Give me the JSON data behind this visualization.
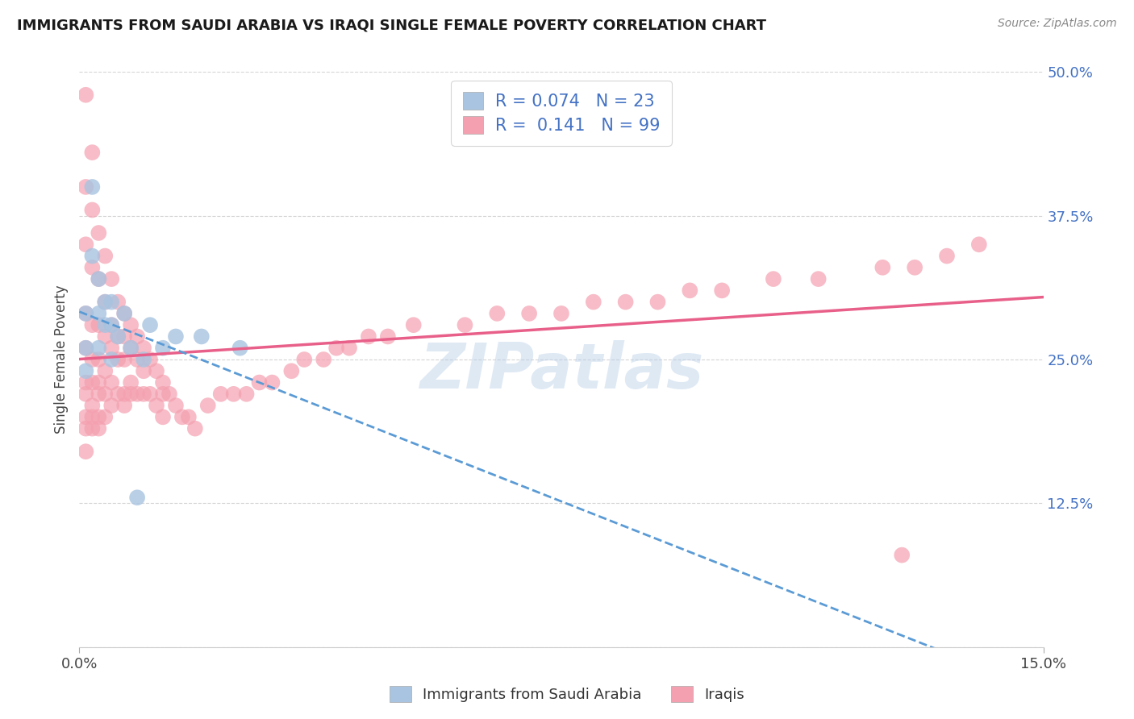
{
  "title": "IMMIGRANTS FROM SAUDI ARABIA VS IRAQI SINGLE FEMALE POVERTY CORRELATION CHART",
  "source": "Source: ZipAtlas.com",
  "ylabel": "Single Female Poverty",
  "xlim": [
    0.0,
    0.15
  ],
  "ylim": [
    0.0,
    0.5
  ],
  "xtick_labels": [
    "0.0%",
    "15.0%"
  ],
  "yticks": [
    0.0,
    0.125,
    0.25,
    0.375,
    0.5
  ],
  "ytick_labels": [
    "",
    "12.5%",
    "25.0%",
    "37.5%",
    "50.0%"
  ],
  "saudi_R": 0.074,
  "saudi_N": 23,
  "iraqi_R": 0.141,
  "iraqi_N": 99,
  "saudi_color": "#a8c4e0",
  "iraqi_color": "#f4a0b0",
  "saudi_line_color": "#5b9bd5",
  "iraqi_line_color": "#e8608a",
  "background_color": "#ffffff",
  "grid_color": "#d0d0d0",
  "watermark": "ZIPatlas",
  "legend_label_saudi": "Immigrants from Saudi Arabia",
  "legend_label_iraqi": "Iraqis",
  "saudi_x": [
    0.001,
    0.001,
    0.001,
    0.002,
    0.002,
    0.003,
    0.003,
    0.003,
    0.004,
    0.004,
    0.005,
    0.005,
    0.005,
    0.006,
    0.007,
    0.008,
    0.009,
    0.01,
    0.011,
    0.013,
    0.015,
    0.019,
    0.025
  ],
  "saudi_y": [
    0.26,
    0.29,
    0.24,
    0.4,
    0.34,
    0.29,
    0.32,
    0.26,
    0.3,
    0.28,
    0.3,
    0.28,
    0.25,
    0.27,
    0.29,
    0.26,
    0.13,
    0.25,
    0.28,
    0.26,
    0.27,
    0.27,
    0.26
  ],
  "iraqi_x": [
    0.001,
    0.001,
    0.001,
    0.001,
    0.001,
    0.001,
    0.001,
    0.001,
    0.001,
    0.001,
    0.002,
    0.002,
    0.002,
    0.002,
    0.002,
    0.002,
    0.002,
    0.002,
    0.002,
    0.003,
    0.003,
    0.003,
    0.003,
    0.003,
    0.003,
    0.003,
    0.003,
    0.004,
    0.004,
    0.004,
    0.004,
    0.004,
    0.004,
    0.005,
    0.005,
    0.005,
    0.005,
    0.005,
    0.006,
    0.006,
    0.006,
    0.006,
    0.007,
    0.007,
    0.007,
    0.007,
    0.007,
    0.008,
    0.008,
    0.008,
    0.008,
    0.009,
    0.009,
    0.009,
    0.01,
    0.01,
    0.01,
    0.011,
    0.011,
    0.012,
    0.012,
    0.013,
    0.013,
    0.013,
    0.014,
    0.015,
    0.016,
    0.017,
    0.018,
    0.02,
    0.022,
    0.024,
    0.026,
    0.028,
    0.03,
    0.033,
    0.035,
    0.038,
    0.04,
    0.042,
    0.045,
    0.048,
    0.052,
    0.06,
    0.065,
    0.07,
    0.075,
    0.08,
    0.085,
    0.09,
    0.095,
    0.1,
    0.108,
    0.115,
    0.125,
    0.128,
    0.13,
    0.135,
    0.14
  ],
  "iraqi_y": [
    0.48,
    0.4,
    0.35,
    0.29,
    0.26,
    0.23,
    0.22,
    0.2,
    0.19,
    0.17,
    0.43,
    0.38,
    0.33,
    0.28,
    0.25,
    0.23,
    0.21,
    0.2,
    0.19,
    0.36,
    0.32,
    0.28,
    0.25,
    0.23,
    0.22,
    0.2,
    0.19,
    0.34,
    0.3,
    0.27,
    0.24,
    0.22,
    0.2,
    0.32,
    0.28,
    0.26,
    0.23,
    0.21,
    0.3,
    0.27,
    0.25,
    0.22,
    0.29,
    0.27,
    0.25,
    0.22,
    0.21,
    0.28,
    0.26,
    0.23,
    0.22,
    0.27,
    0.25,
    0.22,
    0.26,
    0.24,
    0.22,
    0.25,
    0.22,
    0.24,
    0.21,
    0.23,
    0.22,
    0.2,
    0.22,
    0.21,
    0.2,
    0.2,
    0.19,
    0.21,
    0.22,
    0.22,
    0.22,
    0.23,
    0.23,
    0.24,
    0.25,
    0.25,
    0.26,
    0.26,
    0.27,
    0.27,
    0.28,
    0.28,
    0.29,
    0.29,
    0.29,
    0.3,
    0.3,
    0.3,
    0.31,
    0.31,
    0.32,
    0.32,
    0.33,
    0.08,
    0.33,
    0.34,
    0.35
  ]
}
